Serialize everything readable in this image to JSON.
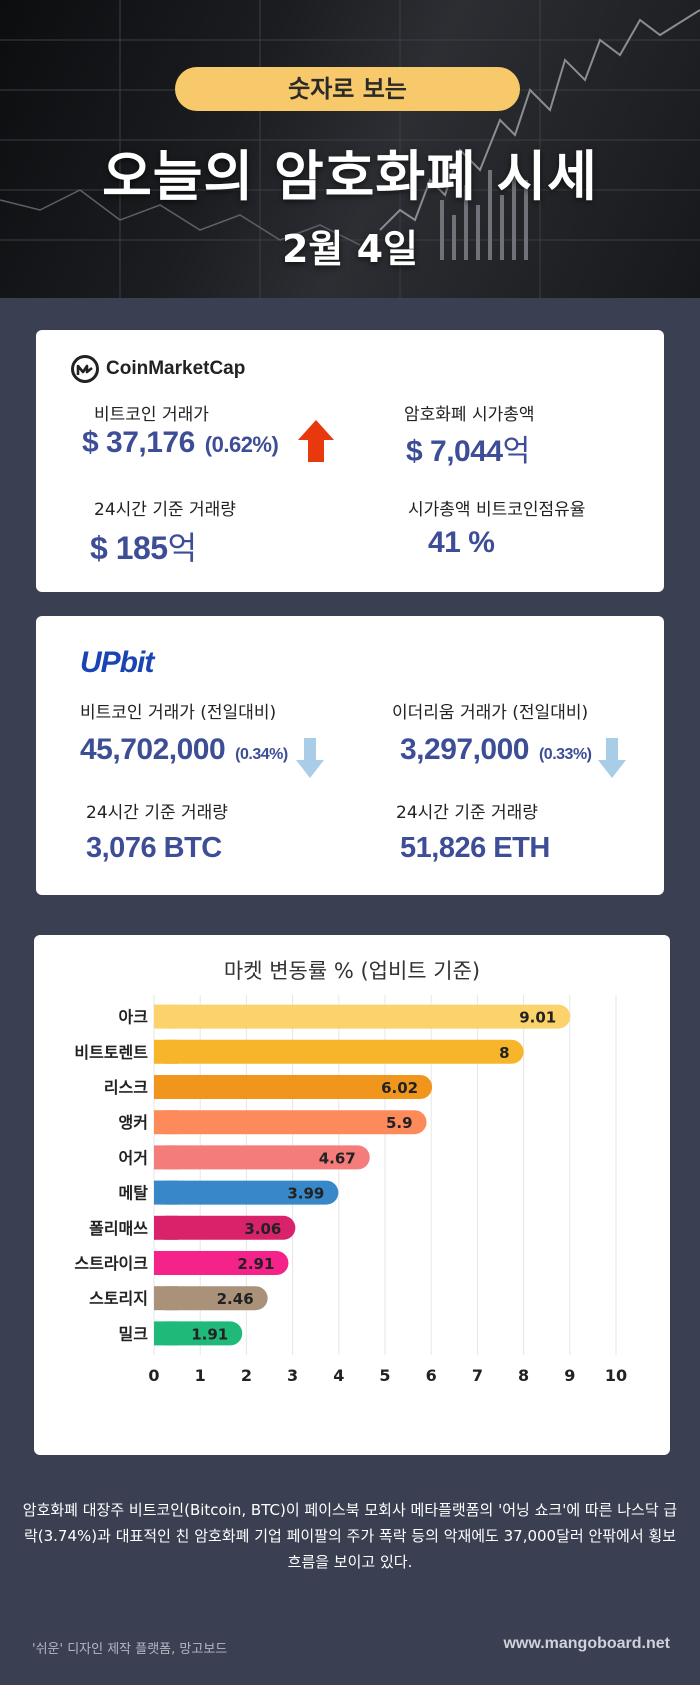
{
  "header": {
    "pill": "숫자로 보는",
    "title": "오늘의 암호화폐 시세",
    "date": "2월 4일"
  },
  "coinmarketcap": {
    "logo_text": "CoinMarketCap",
    "btc_price_label": "비트코인 거래가",
    "btc_price_value": "$ 37,176",
    "btc_price_change": "(0.62%)",
    "btc_price_direction": "up",
    "market_cap_label": "암호화폐 시가총액",
    "market_cap_value": "$ 7,044",
    "market_cap_unit": "억",
    "volume_label": "24시간 기준 거래량",
    "volume_value": "$ 185",
    "volume_unit": "억",
    "dominance_label": "시가총액 비트코인점유율",
    "dominance_value": "41 %",
    "colors": {
      "value": "#3d4e97",
      "up_arrow": "#e8380d"
    }
  },
  "upbit": {
    "logo_text": "UPbit",
    "btc_label": "비트코인 거래가 (전일대비)",
    "btc_value": "45,702,000",
    "btc_change": "(0.34%)",
    "btc_direction": "down",
    "eth_label": "이더리움 거래가 (전일대비)",
    "eth_value": "3,297,000",
    "eth_change": "(0.33%)",
    "eth_direction": "down",
    "btc_volume_label": "24시간 기준 거래량",
    "btc_volume_value": "3,076 BTC",
    "eth_volume_label": "24시간 기준 거래량",
    "eth_volume_value": "51,826 ETH",
    "colors": {
      "down_arrow": "#a9cde6"
    }
  },
  "chart_data": {
    "type": "bar",
    "orientation": "horizontal",
    "title": "마켓 변동률 % (업비트 기준)",
    "categories": [
      "아크",
      "비트토렌트",
      "리스크",
      "앵커",
      "어거",
      "메탈",
      "폴리매쓰",
      "스트라이크",
      "스토리지",
      "밀크"
    ],
    "values": [
      9.01,
      8,
      6.02,
      5.9,
      4.67,
      3.99,
      3.06,
      2.91,
      2.46,
      1.91
    ],
    "value_labels": [
      "9.01",
      "8",
      "6.02",
      "5.9",
      "4.67",
      "3.99",
      "3.06",
      "2.91",
      "2.46",
      "1.91"
    ],
    "colors": [
      "#fcd36b",
      "#f6b52a",
      "#f0961d",
      "#fd8a5a",
      "#f47c7a",
      "#3887c9",
      "#d8226a",
      "#f5228a",
      "#a9917a",
      "#1fb97a"
    ],
    "xlim": [
      0,
      10
    ],
    "xticks": [
      "0",
      "1",
      "2",
      "3",
      "4",
      "5",
      "6",
      "7",
      "8",
      "9",
      "10"
    ],
    "grid": "vertical"
  },
  "footer": {
    "description": "암호화폐 대장주 비트코인(Bitcoin, BTC)이 페이스북 모회사 메타플랫폼의 '어닝 쇼크'에 따른 나스닥 급락(3.74%)과 대표적인 친 암호화폐 기업 페이팔의 주가 폭락 등의 악재에도 37,000달러 안팎에서 횡보 흐름을 보이고 있다.",
    "credit": "'쉬운' 디자인 제작 플랫폼, 망고보드",
    "site": "www.mangoboard.net"
  }
}
